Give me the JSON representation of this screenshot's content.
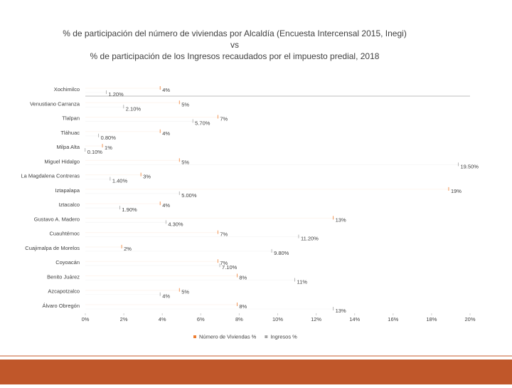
{
  "chart_data": {
    "type": "bar",
    "orientation": "horizontal",
    "title": [
      "% de participación del número de viviendas por Alcaldía (Encuesta Intercensal 2015, Inegi)",
      "vs",
      "% de participación de los Ingresos recaudados por el impuesto predial, 2018"
    ],
    "categories": [
      "Xochimilco",
      "Venustiano Carranza",
      "Tlalpan",
      "Tláhuac",
      "Milpa Alta",
      "Miguel Hidalgo",
      "La Magdalena Contreras",
      "Iztapalapa",
      "Iztacalco",
      "Gustavo A. Madero",
      "Cuauhtémoc",
      "Cuajimalpa de Morelos",
      "Coyoacán",
      "Benito Juárez",
      "Azcapotzalco",
      "Álvaro Obregón"
    ],
    "series": [
      {
        "name": "Número de Viviendas %",
        "color": "#ed7d31",
        "values": [
          4,
          5,
          7,
          4,
          1,
          5,
          3,
          19,
          4,
          13,
          7,
          2,
          7,
          8,
          5,
          8
        ],
        "value_labels": [
          "4%",
          "5%",
          "7%",
          "4%",
          "1%",
          "5%",
          "3%",
          "19%",
          "4%",
          "13%",
          "7%",
          "2%",
          "7%",
          "8%",
          "5%",
          "8%"
        ]
      },
      {
        "name": "Ingresos %",
        "color": "#a5a5a5",
        "values": [
          1.2,
          2.1,
          5.7,
          0.8,
          0.1,
          19.5,
          1.4,
          5,
          1.9,
          4.3,
          11.2,
          9.8,
          7.1,
          11,
          4,
          13
        ],
        "value_labels": [
          "1.20%",
          "2.10%",
          "5.70%",
          "0.80%",
          "0.10%",
          "19.50%",
          "1.40%",
          "5.00%",
          "1.90%",
          "4.30%",
          "11.20%",
          "9.80%",
          "7.10%",
          "11%",
          "4%",
          "13%"
        ]
      }
    ],
    "xlim": [
      0,
      20
    ],
    "xticks": [
      {
        "value": 0,
        "label": "0%"
      },
      {
        "value": 2,
        "label": "2%"
      },
      {
        "value": 4,
        "label": "4%"
      },
      {
        "value": 6,
        "label": "6%"
      },
      {
        "value": 8,
        "label": "8%"
      },
      {
        "value": 10,
        "label": "10%"
      },
      {
        "value": 12,
        "label": "12%"
      },
      {
        "value": 14,
        "label": "14%"
      },
      {
        "value": 16,
        "label": "16%"
      },
      {
        "value": 18,
        "label": "18%"
      },
      {
        "value": 20,
        "label": "20%"
      }
    ],
    "legend": "bottom",
    "grid": false
  }
}
